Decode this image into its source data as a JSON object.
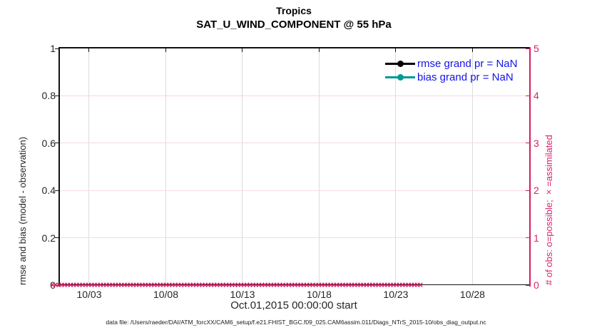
{
  "chart_data": {
    "type": "line",
    "title": "Tropics",
    "subtitle": "SAT_U_WIND_COMPONENT @ 55 hPa",
    "xlabel": "Oct.01,2015 00:00:00 start",
    "ylabel_left": "rmse and bias (model - observation)",
    "ylabel_right": "# of obs: o=possible; ×=assimilated",
    "ylim_left": [
      0,
      1
    ],
    "ylim_right": [
      0,
      5
    ],
    "yticks_left": [
      0,
      0.2,
      0.4,
      0.6,
      0.8,
      1
    ],
    "ytick_labels_left": [
      "0",
      "0.2",
      "0.4",
      "0.6",
      "0.8",
      "1"
    ],
    "yticks_right": [
      0,
      1,
      2,
      3,
      4,
      5
    ],
    "ytick_labels_right": [
      "0",
      "1",
      "2",
      "3",
      "4",
      "5"
    ],
    "x_range_days": [
      1,
      31.7
    ],
    "xtick_days": [
      3,
      8,
      13,
      18,
      23,
      28
    ],
    "xtick_labels": [
      "10/03",
      "10/08",
      "10/13",
      "10/18",
      "10/23",
      "10/28"
    ],
    "grid": true,
    "legend_position": "top-right",
    "series": [
      {
        "label": "rmse grand pr = NaN",
        "color": "#000000",
        "values_note": "all NaN, nothing plotted"
      },
      {
        "label": "bias grand pr = NaN",
        "color": "#009999",
        "values_note": "all NaN, nothing plotted"
      }
    ],
    "obs_markers": {
      "marker": "×",
      "meaning": "assimilated observation count",
      "y_value_right_axis": 0,
      "count": 124,
      "color": "#d81b60"
    }
  },
  "colors": {
    "right_axis": "#d81b60",
    "right_text": "#d6246e",
    "legend_text": "#1414e6",
    "bias_line": "#009999",
    "rmse_line": "#000000",
    "vgrid": "#dcdcdc",
    "hgrid": "#f6d9e6",
    "axis_black": "#111111"
  },
  "footer": {
    "data_file_note": "data file: /Users/raeder/DAI/ATM_forcXX/CAM6_setup/f.e21.FHIST_BGC.f09_025.CAM6assim.011/Diags_NTrS_2015-10/obs_diag_output.nc"
  }
}
